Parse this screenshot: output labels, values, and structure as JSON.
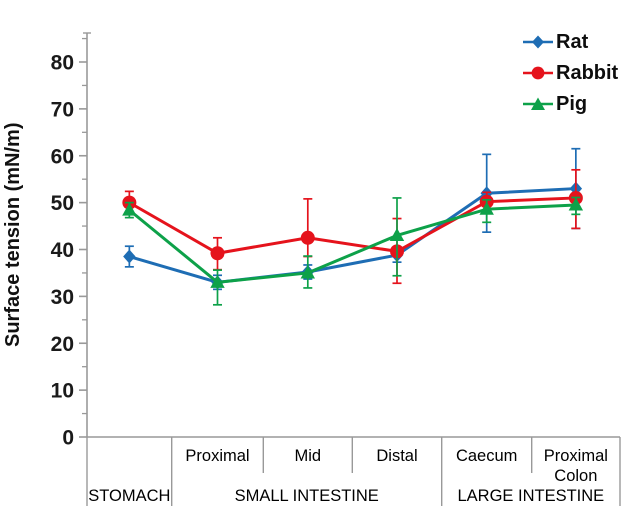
{
  "chart_data": {
    "type": "line",
    "title": "",
    "ylabel": "Surface tension (mN/m)",
    "ylim": [
      0,
      85
    ],
    "yticks": [
      0,
      10,
      20,
      30,
      40,
      50,
      60,
      70,
      80
    ],
    "minor_tick_step": 5,
    "grid": false,
    "legend_position": "top-right",
    "axis_color": "#999999",
    "text_color": "#1a1a1a",
    "segment_labels": [
      "",
      "Proximal",
      "Mid",
      "Distal",
      "Caecum",
      "Proximal\nColon"
    ],
    "groups": [
      {
        "label": "STOMACH",
        "start": 0,
        "end": 1
      },
      {
        "label": "SMALL INTESTINE",
        "start": 1,
        "end": 4
      },
      {
        "label": "LARGE INTESTINE",
        "start": 4,
        "end": 6
      }
    ],
    "series": [
      {
        "name": "Rat",
        "marker": "diamond",
        "color": "#1e6db4",
        "values": [
          38.5,
          33.0,
          35.2,
          38.8,
          52.0,
          53.0
        ],
        "err_up": [
          2.2,
          1.5,
          1.5,
          1.5,
          8.3,
          8.5
        ],
        "err_down": [
          2.2,
          1.5,
          1.5,
          1.5,
          8.3,
          8.5
        ]
      },
      {
        "name": "Rabbit",
        "marker": "circle",
        "color": "#e5131c",
        "values": [
          50.0,
          39.2,
          42.5,
          39.6,
          50.2,
          51.0
        ],
        "err_up": [
          2.4,
          3.3,
          8.3,
          7.0,
          2.0,
          6.0
        ],
        "err_down": [
          2.0,
          3.5,
          4.0,
          6.8,
          2.0,
          6.5
        ]
      },
      {
        "name": "Pig",
        "marker": "triangle",
        "color": "#0da149",
        "values": [
          48.4,
          33.0,
          35.0,
          43.0,
          48.6,
          49.5
        ],
        "err_up": [
          1.6,
          2.6,
          3.6,
          8.0,
          2.0,
          1.6
        ],
        "err_down": [
          1.6,
          4.8,
          3.2,
          8.6,
          2.8,
          2.0
        ]
      }
    ]
  }
}
